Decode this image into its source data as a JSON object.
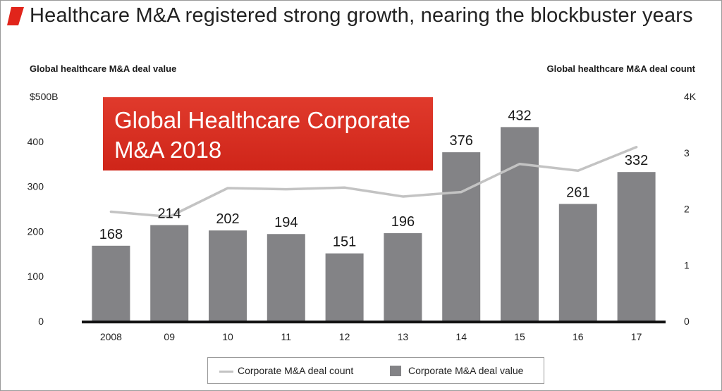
{
  "header": {
    "title": "Healthcare M&A registered strong growth, nearing the blockbuster years",
    "accent_color": "#e1251b"
  },
  "banner": {
    "line1": "Global Healthcare Corporate",
    "line2": "M&A 2018"
  },
  "chart_data": {
    "type": "bar",
    "categories": [
      "2008",
      "09",
      "10",
      "11",
      "12",
      "13",
      "14",
      "15",
      "16",
      "17"
    ],
    "ylabel": "Global healthcare M&A deal value",
    "y2label": "Global healthcare M&A deal count",
    "ylim": [
      0,
      500
    ],
    "y2lim": [
      0,
      4
    ],
    "yticks": [
      "0",
      "100",
      "200",
      "300",
      "400",
      "$500B"
    ],
    "y2ticks": [
      "0",
      "1",
      "2",
      "3",
      "4K"
    ],
    "series": [
      {
        "name": "Corporate M&A deal value",
        "type": "bar",
        "axis": "left",
        "color": "#838386",
        "values": [
          168,
          214,
          202,
          194,
          151,
          196,
          376,
          432,
          261,
          332
        ],
        "labels": [
          "168",
          "214",
          "202",
          "194",
          "151",
          "196",
          "376",
          "432",
          "261",
          "332"
        ]
      },
      {
        "name": "Corporate M&A deal count",
        "type": "line",
        "axis": "right",
        "color": "#c3c3c3",
        "values": [
          1.95,
          1.86,
          2.37,
          2.35,
          2.38,
          2.22,
          2.3,
          2.8,
          2.68,
          3.1
        ]
      }
    ],
    "legend": {
      "position": "bottom",
      "line_label": "Corporate M&A deal count",
      "bar_label": "Corporate M&A deal value"
    }
  }
}
